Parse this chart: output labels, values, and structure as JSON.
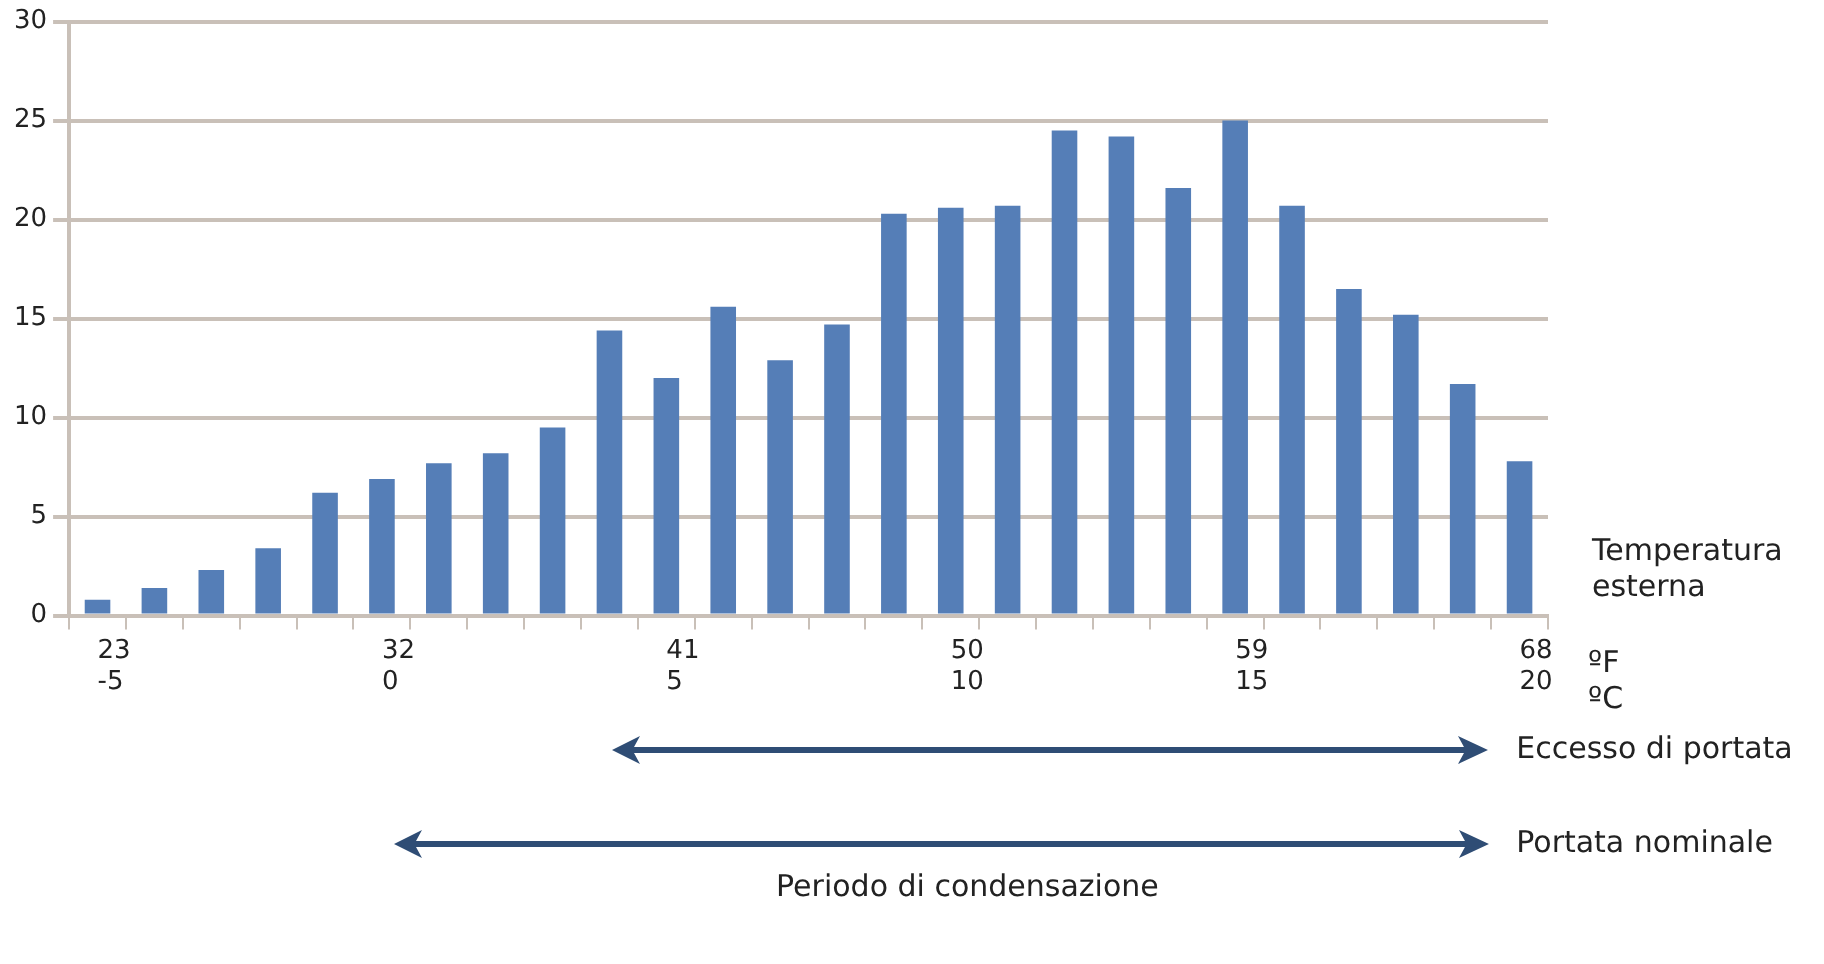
{
  "chart_data": {
    "type": "bar",
    "xlabel": "Temperatura esterna",
    "categories": [
      "23\n-5",
      null,
      null,
      null,
      null,
      "32\n0",
      null,
      null,
      null,
      null,
      "41\n5",
      null,
      null,
      null,
      null,
      "50\n10",
      null,
      null,
      null,
      null,
      "59\n15",
      null,
      null,
      null,
      null,
      "68\n20"
    ],
    "values": [
      0.8,
      1.4,
      2.3,
      3.4,
      6.2,
      6.9,
      7.7,
      8.2,
      9.5,
      14.4,
      12.0,
      15.6,
      12.9,
      14.7,
      20.3,
      20.6,
      20.7,
      24.5,
      24.2,
      21.6,
      25.0,
      20.7,
      16.5,
      15.2,
      11.7,
      7.8
    ],
    "color": "#557eb7",
    "ylim": [
      0,
      30
    ],
    "yticks": [
      0,
      5,
      10,
      15,
      20,
      25,
      30
    ],
    "grid": "y",
    "annotations": [
      "ºF",
      "ºC",
      "Eccesso di portata",
      "Portata nominale",
      "Periodo di condensazione"
    ]
  }
}
